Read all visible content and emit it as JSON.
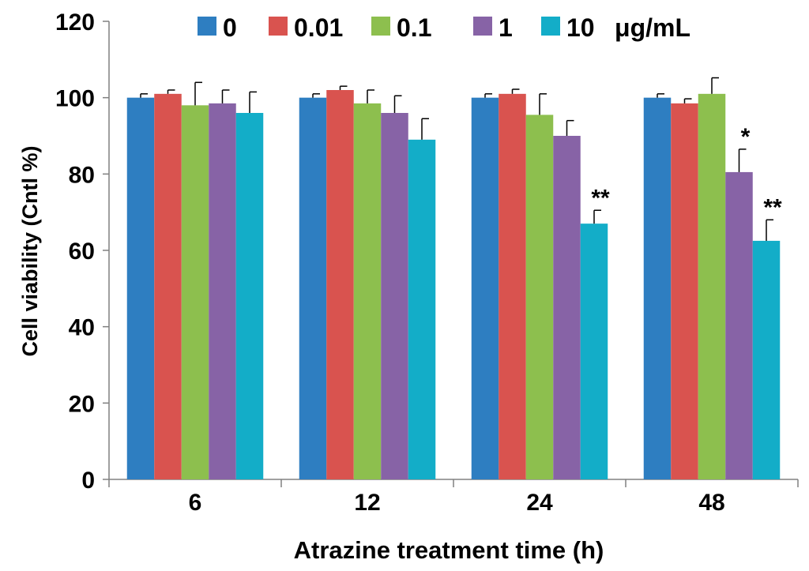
{
  "chart_data": {
    "type": "bar",
    "title": "",
    "xlabel": "Atrazine treatment time (h)",
    "ylabel": "Cell viability (Cntl %)",
    "ylim": [
      0,
      120
    ],
    "yticks": [
      0,
      20,
      40,
      60,
      80,
      100,
      120
    ],
    "categories": [
      "6",
      "12",
      "24",
      "48"
    ],
    "legend_unit": "μg/mL",
    "legend_position": "top",
    "grid": false,
    "series": [
      {
        "name": "0",
        "color": "#2E7EC1",
        "values": [
          100,
          100,
          100,
          100
        ],
        "errors": [
          1,
          1,
          1,
          1
        ]
      },
      {
        "name": "0.01",
        "color": "#D9534F",
        "values": [
          101,
          102,
          101,
          98.5
        ],
        "errors": [
          1,
          1,
          1.2,
          1.2
        ]
      },
      {
        "name": "0.1",
        "color": "#8DBF4E",
        "values": [
          98,
          98.5,
          95.5,
          101
        ],
        "errors": [
          6,
          3.5,
          5.5,
          4.2
        ]
      },
      {
        "name": "1",
        "color": "#8763A6",
        "values": [
          98.5,
          96,
          90,
          80.5
        ],
        "errors": [
          3.5,
          4.5,
          4,
          6
        ]
      },
      {
        "name": "10",
        "color": "#13ADC8",
        "values": [
          96,
          89,
          67,
          62.5
        ],
        "errors": [
          5.5,
          5.5,
          3.5,
          5.5
        ]
      }
    ],
    "annotations": [
      {
        "category": "24",
        "series": "10",
        "text": "**"
      },
      {
        "category": "48",
        "series": "1",
        "text": "*"
      },
      {
        "category": "48",
        "series": "10",
        "text": "**"
      }
    ]
  }
}
